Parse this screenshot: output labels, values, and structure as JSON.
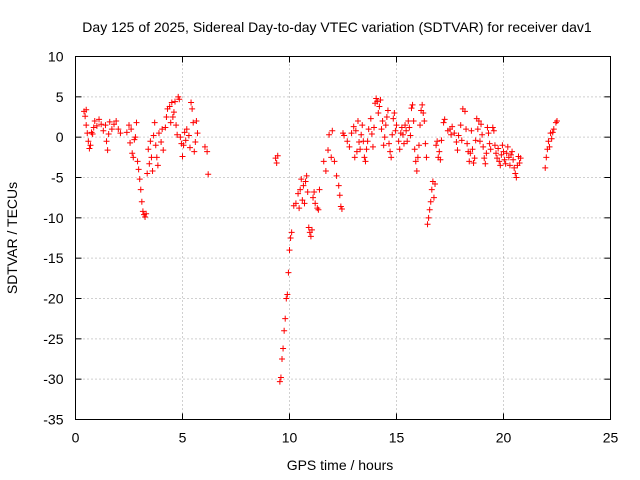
{
  "chart_data": {
    "type": "scatter",
    "title": "Day 125 of 2025, Sidereal Day-to-day VTEC variation (SDTVAR) for receiver dav1",
    "xlabel": "GPS time / hours",
    "ylabel": "SDTVAR / TECUs",
    "xlim": [
      0,
      25
    ],
    "ylim": [
      -35,
      10
    ],
    "xticks": [
      0,
      5,
      10,
      15,
      20,
      25
    ],
    "yticks": [
      10,
      5,
      0,
      -5,
      -10,
      -15,
      -20,
      -25,
      -30,
      -35
    ],
    "xtick_labels": [
      "0",
      "5",
      "10",
      "15",
      "20",
      "25"
    ],
    "ytick_labels": [
      "10",
      "5",
      "0",
      "-5",
      "-10",
      "-15",
      "-20",
      "-25",
      "-30",
      "-35"
    ],
    "grid": true,
    "marker": "+",
    "color": "#ff0000",
    "series": [
      {
        "name": "dav1",
        "points": [
          [
            0.4,
            3.2
          ],
          [
            0.45,
            2.6
          ],
          [
            0.5,
            3.4
          ],
          [
            0.5,
            1.5
          ],
          [
            0.55,
            0.5
          ],
          [
            0.6,
            -0.5
          ],
          [
            0.65,
            -1.4
          ],
          [
            0.7,
            -1.0
          ],
          [
            0.75,
            0.6
          ],
          [
            0.8,
            0.4
          ],
          [
            0.85,
            1.2
          ],
          [
            0.9,
            2.0
          ],
          [
            1.0,
            1.4
          ],
          [
            1.1,
            2.2
          ],
          [
            1.2,
            1.6
          ],
          [
            1.3,
            0.8
          ],
          [
            1.4,
            1.5
          ],
          [
            1.45,
            -0.5
          ],
          [
            1.5,
            -1.6
          ],
          [
            1.55,
            0.4
          ],
          [
            1.6,
            1.9
          ],
          [
            1.7,
            1.0
          ],
          [
            1.8,
            1.6
          ],
          [
            1.9,
            2.0
          ],
          [
            2.0,
            1.0
          ],
          [
            2.1,
            0.5
          ],
          [
            2.4,
            0.6
          ],
          [
            2.5,
            1.5
          ],
          [
            2.55,
            -0.7
          ],
          [
            2.6,
            1.0
          ],
          [
            2.65,
            -2.0
          ],
          [
            2.7,
            -2.5
          ],
          [
            2.75,
            -0.3
          ],
          [
            2.8,
            0.0
          ],
          [
            2.85,
            1.8
          ],
          [
            2.9,
            -3.0
          ],
          [
            2.95,
            -4.0
          ],
          [
            3.0,
            -5.2
          ],
          [
            3.05,
            -6.5
          ],
          [
            3.1,
            -8.0
          ],
          [
            3.15,
            -9.2
          ],
          [
            3.2,
            -9.6
          ],
          [
            3.25,
            -9.9
          ],
          [
            3.3,
            -9.5
          ],
          [
            3.35,
            -4.5
          ],
          [
            3.4,
            -1.5
          ],
          [
            3.45,
            -3.3
          ],
          [
            3.5,
            -0.5
          ],
          [
            3.55,
            -2.5
          ],
          [
            3.6,
            -4.2
          ],
          [
            3.65,
            0.2
          ],
          [
            3.7,
            1.8
          ],
          [
            3.75,
            -1.0
          ],
          [
            3.8,
            -2.5
          ],
          [
            3.85,
            -3.5
          ],
          [
            3.9,
            0.5
          ],
          [
            4.0,
            -0.6
          ],
          [
            4.05,
            1.0
          ],
          [
            4.1,
            -1.6
          ],
          [
            4.2,
            1.2
          ],
          [
            4.25,
            2.5
          ],
          [
            4.3,
            3.5
          ],
          [
            4.4,
            3.8
          ],
          [
            4.45,
            1.8
          ],
          [
            4.5,
            4.3
          ],
          [
            4.55,
            2.5
          ],
          [
            4.6,
            3.1
          ],
          [
            4.65,
            4.4
          ],
          [
            4.7,
            1.5
          ],
          [
            4.75,
            0.3
          ],
          [
            4.8,
            5.0
          ],
          [
            4.85,
            4.7
          ],
          [
            4.9,
            0.0
          ],
          [
            4.95,
            -0.8
          ],
          [
            5.0,
            -2.4
          ],
          [
            5.05,
            -1.0
          ],
          [
            5.1,
            0.6
          ],
          [
            5.15,
            -0.4
          ],
          [
            5.2,
            1.0
          ],
          [
            5.3,
            0.2
          ],
          [
            5.35,
            -1.3
          ],
          [
            5.4,
            4.3
          ],
          [
            5.45,
            3.5
          ],
          [
            5.5,
            1.8
          ],
          [
            5.55,
            -1.8
          ],
          [
            5.6,
            -0.6
          ],
          [
            5.65,
            2.0
          ],
          [
            5.7,
            0.5
          ],
          [
            6.05,
            -1.2
          ],
          [
            6.15,
            -1.8
          ],
          [
            6.2,
            -4.6
          ],
          [
            9.35,
            -2.6
          ],
          [
            9.4,
            -3.2
          ],
          [
            9.45,
            -2.3
          ],
          [
            9.55,
            -30.3
          ],
          [
            9.6,
            -29.8
          ],
          [
            9.65,
            -27.5
          ],
          [
            9.7,
            -26.2
          ],
          [
            9.75,
            -24.0
          ],
          [
            9.8,
            -22.5
          ],
          [
            9.85,
            -20.0
          ],
          [
            9.9,
            -19.5
          ],
          [
            9.95,
            -16.8
          ],
          [
            10.0,
            -14.0
          ],
          [
            10.05,
            -12.5
          ],
          [
            10.1,
            -11.8
          ],
          [
            10.2,
            -8.5
          ],
          [
            10.3,
            -8.2
          ],
          [
            10.4,
            -7.0
          ],
          [
            10.45,
            -8.8
          ],
          [
            10.5,
            -6.5
          ],
          [
            10.55,
            -5.2
          ],
          [
            10.6,
            -7.8
          ],
          [
            10.65,
            -6.0
          ],
          [
            10.7,
            -8.2
          ],
          [
            10.75,
            -5.5
          ],
          [
            10.8,
            -4.8
          ],
          [
            10.85,
            -6.8
          ],
          [
            10.9,
            -11.2
          ],
          [
            10.95,
            -11.8
          ],
          [
            11.0,
            -12.3
          ],
          [
            11.05,
            -11.5
          ],
          [
            11.1,
            -7.5
          ],
          [
            11.15,
            -6.8
          ],
          [
            11.2,
            -8.2
          ],
          [
            11.3,
            -8.8
          ],
          [
            11.35,
            -9.0
          ],
          [
            11.4,
            -6.5
          ],
          [
            11.6,
            -3.0
          ],
          [
            11.7,
            -4.2
          ],
          [
            11.8,
            -1.6
          ],
          [
            11.85,
            0.3
          ],
          [
            11.95,
            -2.5
          ],
          [
            12.0,
            0.8
          ],
          [
            12.1,
            -3.0
          ],
          [
            12.2,
            -4.8
          ],
          [
            12.3,
            -6.0
          ],
          [
            12.35,
            -7.2
          ],
          [
            12.4,
            -8.6
          ],
          [
            12.45,
            -8.9
          ],
          [
            12.5,
            0.5
          ],
          [
            12.55,
            0.2
          ],
          [
            12.7,
            -0.5
          ],
          [
            12.8,
            -1.2
          ],
          [
            12.9,
            0.5
          ],
          [
            13.0,
            1.3
          ],
          [
            13.05,
            -2.5
          ],
          [
            13.1,
            0.8
          ],
          [
            13.15,
            -1.8
          ],
          [
            13.2,
            2.0
          ],
          [
            13.25,
            -0.6
          ],
          [
            13.3,
            -1.5
          ],
          [
            13.35,
            0.3
          ],
          [
            13.4,
            1.5
          ],
          [
            13.45,
            -0.5
          ],
          [
            13.5,
            -2.5
          ],
          [
            13.55,
            -3.0
          ],
          [
            13.6,
            -1.5
          ],
          [
            13.65,
            -0.5
          ],
          [
            13.7,
            1.0
          ],
          [
            13.8,
            2.3
          ],
          [
            13.85,
            0.4
          ],
          [
            13.9,
            -1.2
          ],
          [
            13.95,
            1.2
          ],
          [
            14.0,
            4.2
          ],
          [
            14.05,
            4.8
          ],
          [
            14.1,
            4.4
          ],
          [
            14.15,
            3.0
          ],
          [
            14.2,
            3.8
          ],
          [
            14.25,
            4.6
          ],
          [
            14.3,
            1.0
          ],
          [
            14.35,
            2.0
          ],
          [
            14.4,
            -1.0
          ],
          [
            14.45,
            0.0
          ],
          [
            14.5,
            1.5
          ],
          [
            14.55,
            2.5
          ],
          [
            14.6,
            3.3
          ],
          [
            14.65,
            -0.8
          ],
          [
            14.7,
            -1.8
          ],
          [
            14.75,
            -2.5
          ],
          [
            14.8,
            0.3
          ],
          [
            14.85,
            2.3
          ],
          [
            14.9,
            3.0
          ],
          [
            14.95,
            0.8
          ],
          [
            15.0,
            1.5
          ],
          [
            15.1,
            -0.5
          ],
          [
            15.15,
            -1.5
          ],
          [
            15.2,
            0.5
          ],
          [
            15.25,
            1.2
          ],
          [
            15.3,
            0.3
          ],
          [
            15.35,
            -0.8
          ],
          [
            15.4,
            1.5
          ],
          [
            15.45,
            0.8
          ],
          [
            15.5,
            -0.5
          ],
          [
            15.55,
            2.0
          ],
          [
            15.6,
            1.2
          ],
          [
            15.65,
            0.2
          ],
          [
            15.7,
            3.6
          ],
          [
            15.75,
            4.0
          ],
          [
            15.8,
            2.0
          ],
          [
            15.85,
            -1.5
          ],
          [
            15.9,
            -3.0
          ],
          [
            15.95,
            -4.2
          ],
          [
            16.0,
            -2.5
          ],
          [
            16.05,
            -1.0
          ],
          [
            16.1,
            1.5
          ],
          [
            16.15,
            3.3
          ],
          [
            16.2,
            4.0
          ],
          [
            16.25,
            3.0
          ],
          [
            16.3,
            2.0
          ],
          [
            16.35,
            -0.8
          ],
          [
            16.4,
            -2.5
          ],
          [
            16.45,
            -10.8
          ],
          [
            16.5,
            -10.0
          ],
          [
            16.55,
            -9.0
          ],
          [
            16.6,
            -8.0
          ],
          [
            16.65,
            -6.5
          ],
          [
            16.7,
            -5.5
          ],
          [
            16.75,
            -7.5
          ],
          [
            16.8,
            -5.8
          ],
          [
            16.85,
            -1.0
          ],
          [
            16.9,
            -0.5
          ],
          [
            16.95,
            -2.5
          ],
          [
            17.0,
            -1.8
          ],
          [
            17.05,
            -2.8
          ],
          [
            17.1,
            -0.4
          ],
          [
            17.2,
            1.8
          ],
          [
            17.25,
            2.2
          ],
          [
            17.4,
            0.8
          ],
          [
            17.5,
            1.0
          ],
          [
            17.55,
            0.3
          ],
          [
            17.6,
            1.3
          ],
          [
            17.7,
            0.5
          ],
          [
            17.8,
            -0.6
          ],
          [
            17.85,
            -1.6
          ],
          [
            17.9,
            0.2
          ],
          [
            18.0,
            1.5
          ],
          [
            18.05,
            -0.4
          ],
          [
            18.1,
            3.5
          ],
          [
            18.2,
            3.2
          ],
          [
            18.25,
            1.0
          ],
          [
            18.3,
            -0.8
          ],
          [
            18.35,
            -1.8
          ],
          [
            18.4,
            -3.0
          ],
          [
            18.45,
            -2.0
          ],
          [
            18.5,
            0.8
          ],
          [
            18.55,
            -1.5
          ],
          [
            18.6,
            -3.2
          ],
          [
            18.65,
            -2.6
          ],
          [
            18.7,
            -0.4
          ],
          [
            18.75,
            2.3
          ],
          [
            18.8,
            1.0
          ],
          [
            18.85,
            2.0
          ],
          [
            18.9,
            -0.5
          ],
          [
            18.95,
            1.6
          ],
          [
            19.0,
            0.3
          ],
          [
            19.05,
            -1.2
          ],
          [
            19.1,
            -2.6
          ],
          [
            19.15,
            -3.3
          ],
          [
            19.2,
            -2.0
          ],
          [
            19.25,
            1.2
          ],
          [
            19.3,
            0.5
          ],
          [
            19.35,
            -0.8
          ],
          [
            19.4,
            -1.5
          ],
          [
            19.5,
            1.2
          ],
          [
            19.55,
            0.8
          ],
          [
            19.6,
            -1.0
          ],
          [
            19.65,
            -2.0
          ],
          [
            19.7,
            -2.6
          ],
          [
            19.75,
            -1.4
          ],
          [
            19.8,
            -3.0
          ],
          [
            19.85,
            -3.5
          ],
          [
            19.9,
            -2.2
          ],
          [
            19.95,
            -1.0
          ],
          [
            20.0,
            -1.8
          ],
          [
            20.05,
            -2.8
          ],
          [
            20.1,
            -3.3
          ],
          [
            20.15,
            -2.0
          ],
          [
            20.2,
            -1.2
          ],
          [
            20.25,
            -2.5
          ],
          [
            20.3,
            -3.5
          ],
          [
            20.35,
            -2.2
          ],
          [
            20.4,
            -1.8
          ],
          [
            20.45,
            -2.8
          ],
          [
            20.5,
            -3.8
          ],
          [
            20.55,
            -4.5
          ],
          [
            20.6,
            -5.0
          ],
          [
            20.65,
            -3.5
          ],
          [
            20.7,
            -2.4
          ],
          [
            20.75,
            -3.2
          ],
          [
            20.8,
            -2.6
          ],
          [
            21.95,
            -3.8
          ],
          [
            22.0,
            -2.5
          ],
          [
            22.05,
            -1.5
          ],
          [
            22.1,
            -0.5
          ],
          [
            22.15,
            -1.2
          ],
          [
            22.2,
            0.5
          ],
          [
            22.25,
            -0.2
          ],
          [
            22.3,
            0.6
          ],
          [
            22.35,
            1.0
          ],
          [
            22.45,
            1.8
          ],
          [
            22.5,
            2.0
          ]
        ]
      }
    ]
  }
}
